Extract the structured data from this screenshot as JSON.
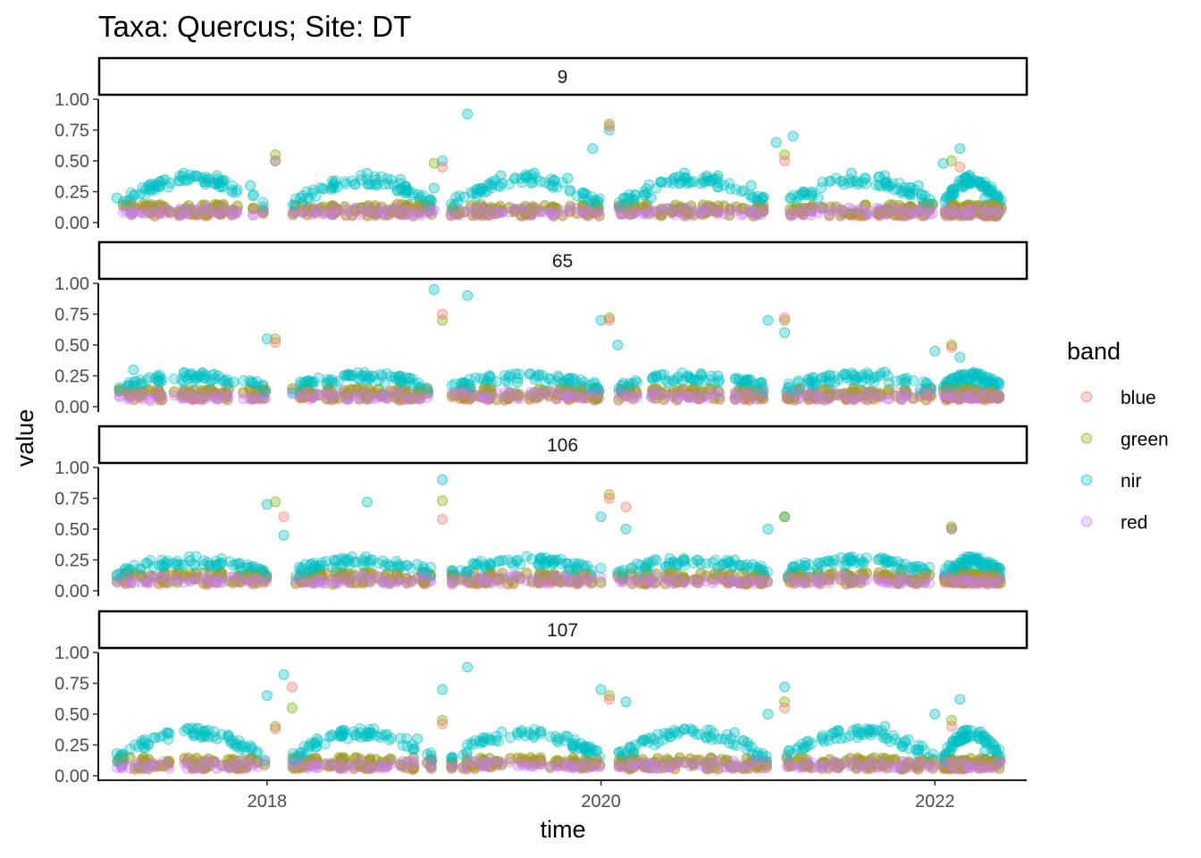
{
  "chart_data": {
    "type": "scatter",
    "title": "Taxa: Quercus; Site: DT",
    "xlabel": "time",
    "ylabel": "value",
    "xlim": [
      2017.0,
      2022.55
    ],
    "x_ticks": [
      {
        "value": 2018,
        "label": "2018"
      },
      {
        "value": 2020,
        "label": "2020"
      },
      {
        "value": 2022,
        "label": "2022"
      }
    ],
    "ylim": [
      0,
      1.0
    ],
    "y_ticks": [
      {
        "value": 0.0,
        "label": "0.00"
      },
      {
        "value": 0.25,
        "label": "0.25"
      },
      {
        "value": 0.5,
        "label": "0.50"
      },
      {
        "value": 0.75,
        "label": "0.75"
      },
      {
        "value": 1.0,
        "label": "1.00"
      }
    ],
    "grid": false,
    "legend": {
      "title": "band",
      "placement": "right",
      "entries": [
        {
          "name": "blue",
          "color": "#F8766D"
        },
        {
          "name": "green",
          "color": "#7CAE00"
        },
        {
          "name": "nir",
          "color": "#00BFC4"
        },
        {
          "name": "red",
          "color": "#C77CFF"
        }
      ]
    },
    "facets": [
      {
        "label": "9",
        "series": [
          {
            "name": "nir",
            "x": [
              2017.1,
              2017.3,
              2017.5,
              2017.7,
              2017.9,
              2018.05,
              2018.2,
              2018.4,
              2018.6,
              2018.8,
              2019.0,
              2019.05,
              2019.2,
              2019.4,
              2019.6,
              2019.8,
              2019.95,
              2020.05,
              2020.15,
              2020.3,
              2020.5,
              2020.7,
              2020.9,
              2021.05,
              2021.15,
              2021.3,
              2021.5,
              2021.7,
              2021.9,
              2022.05,
              2022.15,
              2022.3
            ],
            "y": [
              0.2,
              0.3,
              0.4,
              0.38,
              0.3,
              0.5,
              0.2,
              0.32,
              0.4,
              0.35,
              0.28,
              0.5,
              0.88,
              0.38,
              0.4,
              0.36,
              0.6,
              0.75,
              0.15,
              0.2,
              0.4,
              0.38,
              0.3,
              0.65,
              0.7,
              0.2,
              0.4,
              0.38,
              0.3,
              0.48,
              0.6,
              0.2
            ]
          },
          {
            "name": "red",
            "x": [
              2017.2,
              2017.5,
              2017.8,
              2018.3,
              2018.7,
              2019.0,
              2019.4,
              2019.7,
              2020.3,
              2020.6,
              2020.9,
              2021.3,
              2021.6,
              2021.9,
              2022.2
            ],
            "y": [
              0.08,
              0.07,
              0.08,
              0.1,
              0.09,
              0.1,
              0.08,
              0.08,
              0.1,
              0.09,
              0.08,
              0.08,
              0.07,
              0.08,
              0.1
            ]
          },
          {
            "name": "green",
            "x": [
              2018.05,
              2019.0,
              2020.05,
              2021.1,
              2022.1
            ],
            "y": [
              0.55,
              0.48,
              0.8,
              0.55,
              0.5
            ]
          },
          {
            "name": "blue",
            "x": [
              2018.05,
              2019.05,
              2020.05,
              2021.1,
              2022.15
            ],
            "y": [
              0.5,
              0.45,
              0.78,
              0.5,
              0.45
            ]
          }
        ]
      },
      {
        "label": "65",
        "series": [
          {
            "name": "nir",
            "x": [
              2017.2,
              2017.5,
              2017.8,
              2018.0,
              2018.2,
              2018.5,
              2018.8,
              2019.0,
              2019.2,
              2019.5,
              2019.8,
              2020.0,
              2020.1,
              2020.4,
              2020.7,
              2021.0,
              2021.1,
              2021.4,
              2021.7,
              2022.0,
              2022.15,
              2022.3
            ],
            "y": [
              0.3,
              0.2,
              0.2,
              0.55,
              0.2,
              0.25,
              0.2,
              0.95,
              0.9,
              0.2,
              0.22,
              0.7,
              0.5,
              0.2,
              0.25,
              0.7,
              0.6,
              0.2,
              0.28,
              0.45,
              0.4,
              0.2
            ]
          },
          {
            "name": "red",
            "x": [
              2017.3,
              2017.7,
              2018.3,
              2018.7,
              2019.3,
              2019.8,
              2020.3,
              2020.8,
              2021.3,
              2021.8,
              2022.2
            ],
            "y": [
              0.05,
              0.06,
              0.1,
              0.08,
              0.07,
              0.08,
              0.08,
              0.07,
              0.07,
              0.06,
              0.08
            ]
          },
          {
            "name": "green",
            "x": [
              2018.05,
              2019.05,
              2020.05,
              2021.1,
              2022.1
            ],
            "y": [
              0.55,
              0.7,
              0.72,
              0.7,
              0.5
            ]
          },
          {
            "name": "blue",
            "x": [
              2018.05,
              2019.05,
              2020.05,
              2021.1,
              2022.1
            ],
            "y": [
              0.52,
              0.75,
              0.7,
              0.72,
              0.48
            ]
          }
        ]
      },
      {
        "label": "106",
        "series": [
          {
            "name": "nir",
            "x": [
              2017.1,
              2017.4,
              2017.7,
              2018.0,
              2018.1,
              2018.4,
              2018.6,
              2018.8,
              2019.05,
              2019.2,
              2019.5,
              2019.8,
              2020.0,
              2020.15,
              2020.5,
              2020.8,
              2021.0,
              2021.1,
              2021.4,
              2021.7,
              2022.1,
              2022.3
            ],
            "y": [
              0.12,
              0.22,
              0.2,
              0.7,
              0.45,
              0.25,
              0.72,
              0.2,
              0.9,
              0.15,
              0.25,
              0.22,
              0.6,
              0.5,
              0.25,
              0.25,
              0.5,
              0.6,
              0.25,
              0.25,
              0.5,
              0.2
            ]
          },
          {
            "name": "red",
            "x": [
              2017.3,
              2017.7,
              2018.3,
              2018.7,
              2019.3,
              2019.8,
              2020.3,
              2020.8,
              2021.3,
              2021.8,
              2022.2
            ],
            "y": [
              0.07,
              0.07,
              0.09,
              0.08,
              0.08,
              0.08,
              0.09,
              0.08,
              0.07,
              0.06,
              0.08
            ]
          },
          {
            "name": "green",
            "x": [
              2018.05,
              2019.05,
              2020.05,
              2021.1,
              2022.1
            ],
            "y": [
              0.72,
              0.73,
              0.78,
              0.6,
              0.52
            ]
          },
          {
            "name": "blue",
            "x": [
              2018.1,
              2019.05,
              2020.05,
              2020.15,
              2022.1
            ],
            "y": [
              0.6,
              0.58,
              0.75,
              0.68,
              0.5
            ]
          }
        ]
      },
      {
        "label": "107",
        "series": [
          {
            "name": "nir",
            "x": [
              2017.1,
              2017.4,
              2017.7,
              2018.0,
              2018.1,
              2018.3,
              2018.6,
              2018.9,
              2019.05,
              2019.2,
              2019.5,
              2019.8,
              2020.0,
              2020.15,
              2020.5,
              2020.8,
              2021.0,
              2021.1,
              2021.4,
              2021.7,
              2022.0,
              2022.15,
              2022.3
            ],
            "y": [
              0.18,
              0.35,
              0.3,
              0.65,
              0.82,
              0.3,
              0.35,
              0.3,
              0.7,
              0.88,
              0.35,
              0.32,
              0.7,
              0.6,
              0.38,
              0.35,
              0.5,
              0.72,
              0.35,
              0.4,
              0.5,
              0.62,
              0.2
            ]
          },
          {
            "name": "red",
            "x": [
              2017.3,
              2017.7,
              2018.3,
              2018.7,
              2019.3,
              2019.8,
              2020.3,
              2020.8,
              2021.3,
              2021.8,
              2022.2
            ],
            "y": [
              0.07,
              0.06,
              0.09,
              0.08,
              0.08,
              0.07,
              0.09,
              0.08,
              0.07,
              0.06,
              0.08
            ]
          },
          {
            "name": "green",
            "x": [
              2018.05,
              2018.15,
              2019.05,
              2020.05,
              2021.1,
              2022.1
            ],
            "y": [
              0.4,
              0.55,
              0.45,
              0.65,
              0.6,
              0.45
            ]
          },
          {
            "name": "blue",
            "x": [
              2018.05,
              2018.15,
              2019.05,
              2020.05,
              2021.1,
              2022.1
            ],
            "y": [
              0.38,
              0.72,
              0.42,
              0.62,
              0.55,
              0.4
            ]
          }
        ]
      }
    ]
  }
}
